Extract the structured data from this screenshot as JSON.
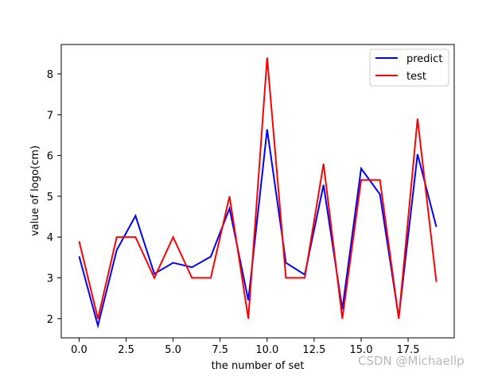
{
  "chart_data": {
    "type": "line",
    "title": "",
    "xlabel": "the number of set",
    "ylabel": "value of logo(cm)",
    "x": [
      0,
      1,
      2,
      3,
      4,
      5,
      6,
      7,
      8,
      9,
      10,
      11,
      12,
      13,
      14,
      15,
      16,
      17,
      18,
      19
    ],
    "series": [
      {
        "name": "predict",
        "color": "#0000ff",
        "values": [
          3.53,
          1.83,
          3.68,
          4.52,
          3.1,
          3.37,
          3.26,
          3.52,
          4.7,
          2.45,
          6.64,
          3.37,
          3.08,
          5.28,
          2.23,
          5.68,
          5.05,
          2.03,
          6.03,
          4.25
        ]
      },
      {
        "name": "test",
        "color": "#ff0000",
        "values": [
          3.9,
          2.0,
          4.0,
          4.0,
          3.0,
          4.0,
          3.0,
          3.0,
          5.0,
          2.0,
          8.4,
          3.0,
          3.0,
          5.8,
          2.0,
          5.4,
          5.4,
          2.0,
          6.9,
          2.9
        ]
      }
    ],
    "xlim": [
      -0.95,
      19.95
    ],
    "ylim": [
      1.53,
      8.72
    ],
    "xticks": [
      0,
      2.5,
      5,
      7.5,
      10,
      12.5,
      15,
      17.5
    ],
    "xtick_labels": [
      "0.0",
      "2.5",
      "5.0",
      "7.5",
      "10.0",
      "12.5",
      "15.0",
      "17.5"
    ],
    "yticks": [
      2,
      3,
      4,
      5,
      6,
      7,
      8
    ],
    "ytick_labels": [
      "2",
      "3",
      "4",
      "5",
      "6",
      "7",
      "8"
    ],
    "grid": false,
    "legend_position": "top-right"
  },
  "watermark": "CSDN @Michaellp"
}
